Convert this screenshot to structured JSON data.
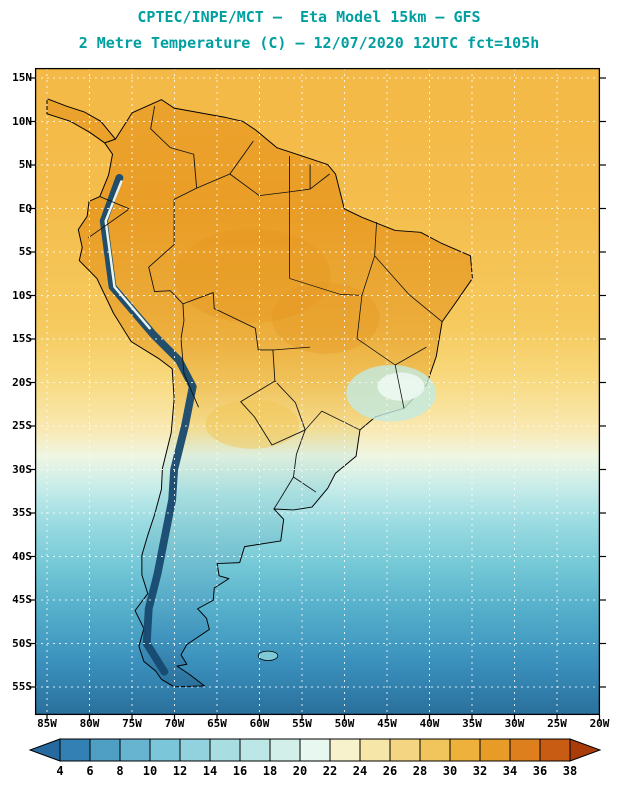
{
  "header": {
    "title_line1": "CPTEC/INPE/MCT —  Eta Model 15km — GFS",
    "title_line2": "2 Metre Temperature (C) — 12/07/2020 12UTC fct=105h",
    "title_color": "#009fa0"
  },
  "map": {
    "lat_labels": [
      "15N",
      "10N",
      "5N",
      "EQ",
      "5S",
      "10S",
      "15S",
      "20S",
      "25S",
      "30S",
      "35S",
      "40S",
      "45S",
      "50S",
      "55S"
    ],
    "lon_labels": [
      "85W",
      "80W",
      "75W",
      "70W",
      "65W",
      "60W",
      "55W",
      "50W",
      "45W",
      "40W",
      "35W",
      "30W",
      "25W",
      "20W"
    ]
  },
  "legend": {
    "tick_labels": [
      "4",
      "6",
      "8",
      "10",
      "12",
      "14",
      "16",
      "18",
      "20",
      "22",
      "24",
      "26",
      "28",
      "30",
      "32",
      "34",
      "36",
      "38"
    ],
    "colors": [
      "#26699e",
      "#3381b4",
      "#4f9ec4",
      "#66b4d0",
      "#7cc6da",
      "#92d2de",
      "#a8dde2",
      "#bce7e6",
      "#d2efea",
      "#e8f7ef",
      "#f8f2cc",
      "#f6e6a8",
      "#f4d682",
      "#f1c55c",
      "#eeb23c",
      "#e89c28",
      "#dd7f1c",
      "#c85c12",
      "#aa3c0a"
    ]
  }
}
